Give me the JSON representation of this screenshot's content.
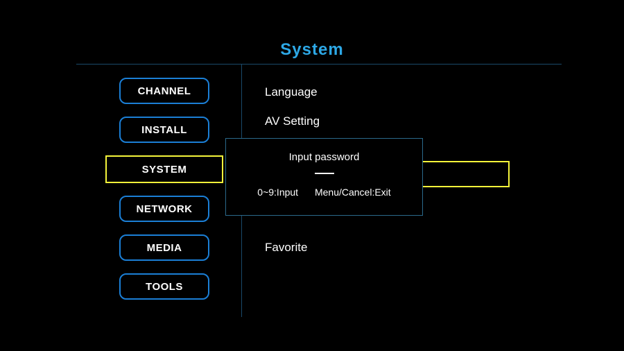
{
  "title": "System",
  "sidebar": {
    "items": [
      {
        "label": "CHANNEL",
        "selected": false
      },
      {
        "label": "INSTALL",
        "selected": false
      },
      {
        "label": "SYSTEM",
        "selected": true
      },
      {
        "label": "NETWORK",
        "selected": false
      },
      {
        "label": "MEDIA",
        "selected": false
      },
      {
        "label": "TOOLS",
        "selected": false
      }
    ]
  },
  "right": {
    "items_top": [
      {
        "label": "Language"
      },
      {
        "label": "AV Setting"
      }
    ],
    "items_bottom": [
      {
        "label": "Favorite"
      }
    ]
  },
  "dialog": {
    "title": "Input password",
    "hint_left": "0~9:Input",
    "hint_right": "Menu/Cancel:Exit"
  },
  "colors": {
    "accent": "#2da8e6",
    "nav_border": "#1b7fd6",
    "selected_border": "#f5f53a",
    "divider": "#1a4a6a",
    "dialog_border": "#2b6a8c"
  }
}
